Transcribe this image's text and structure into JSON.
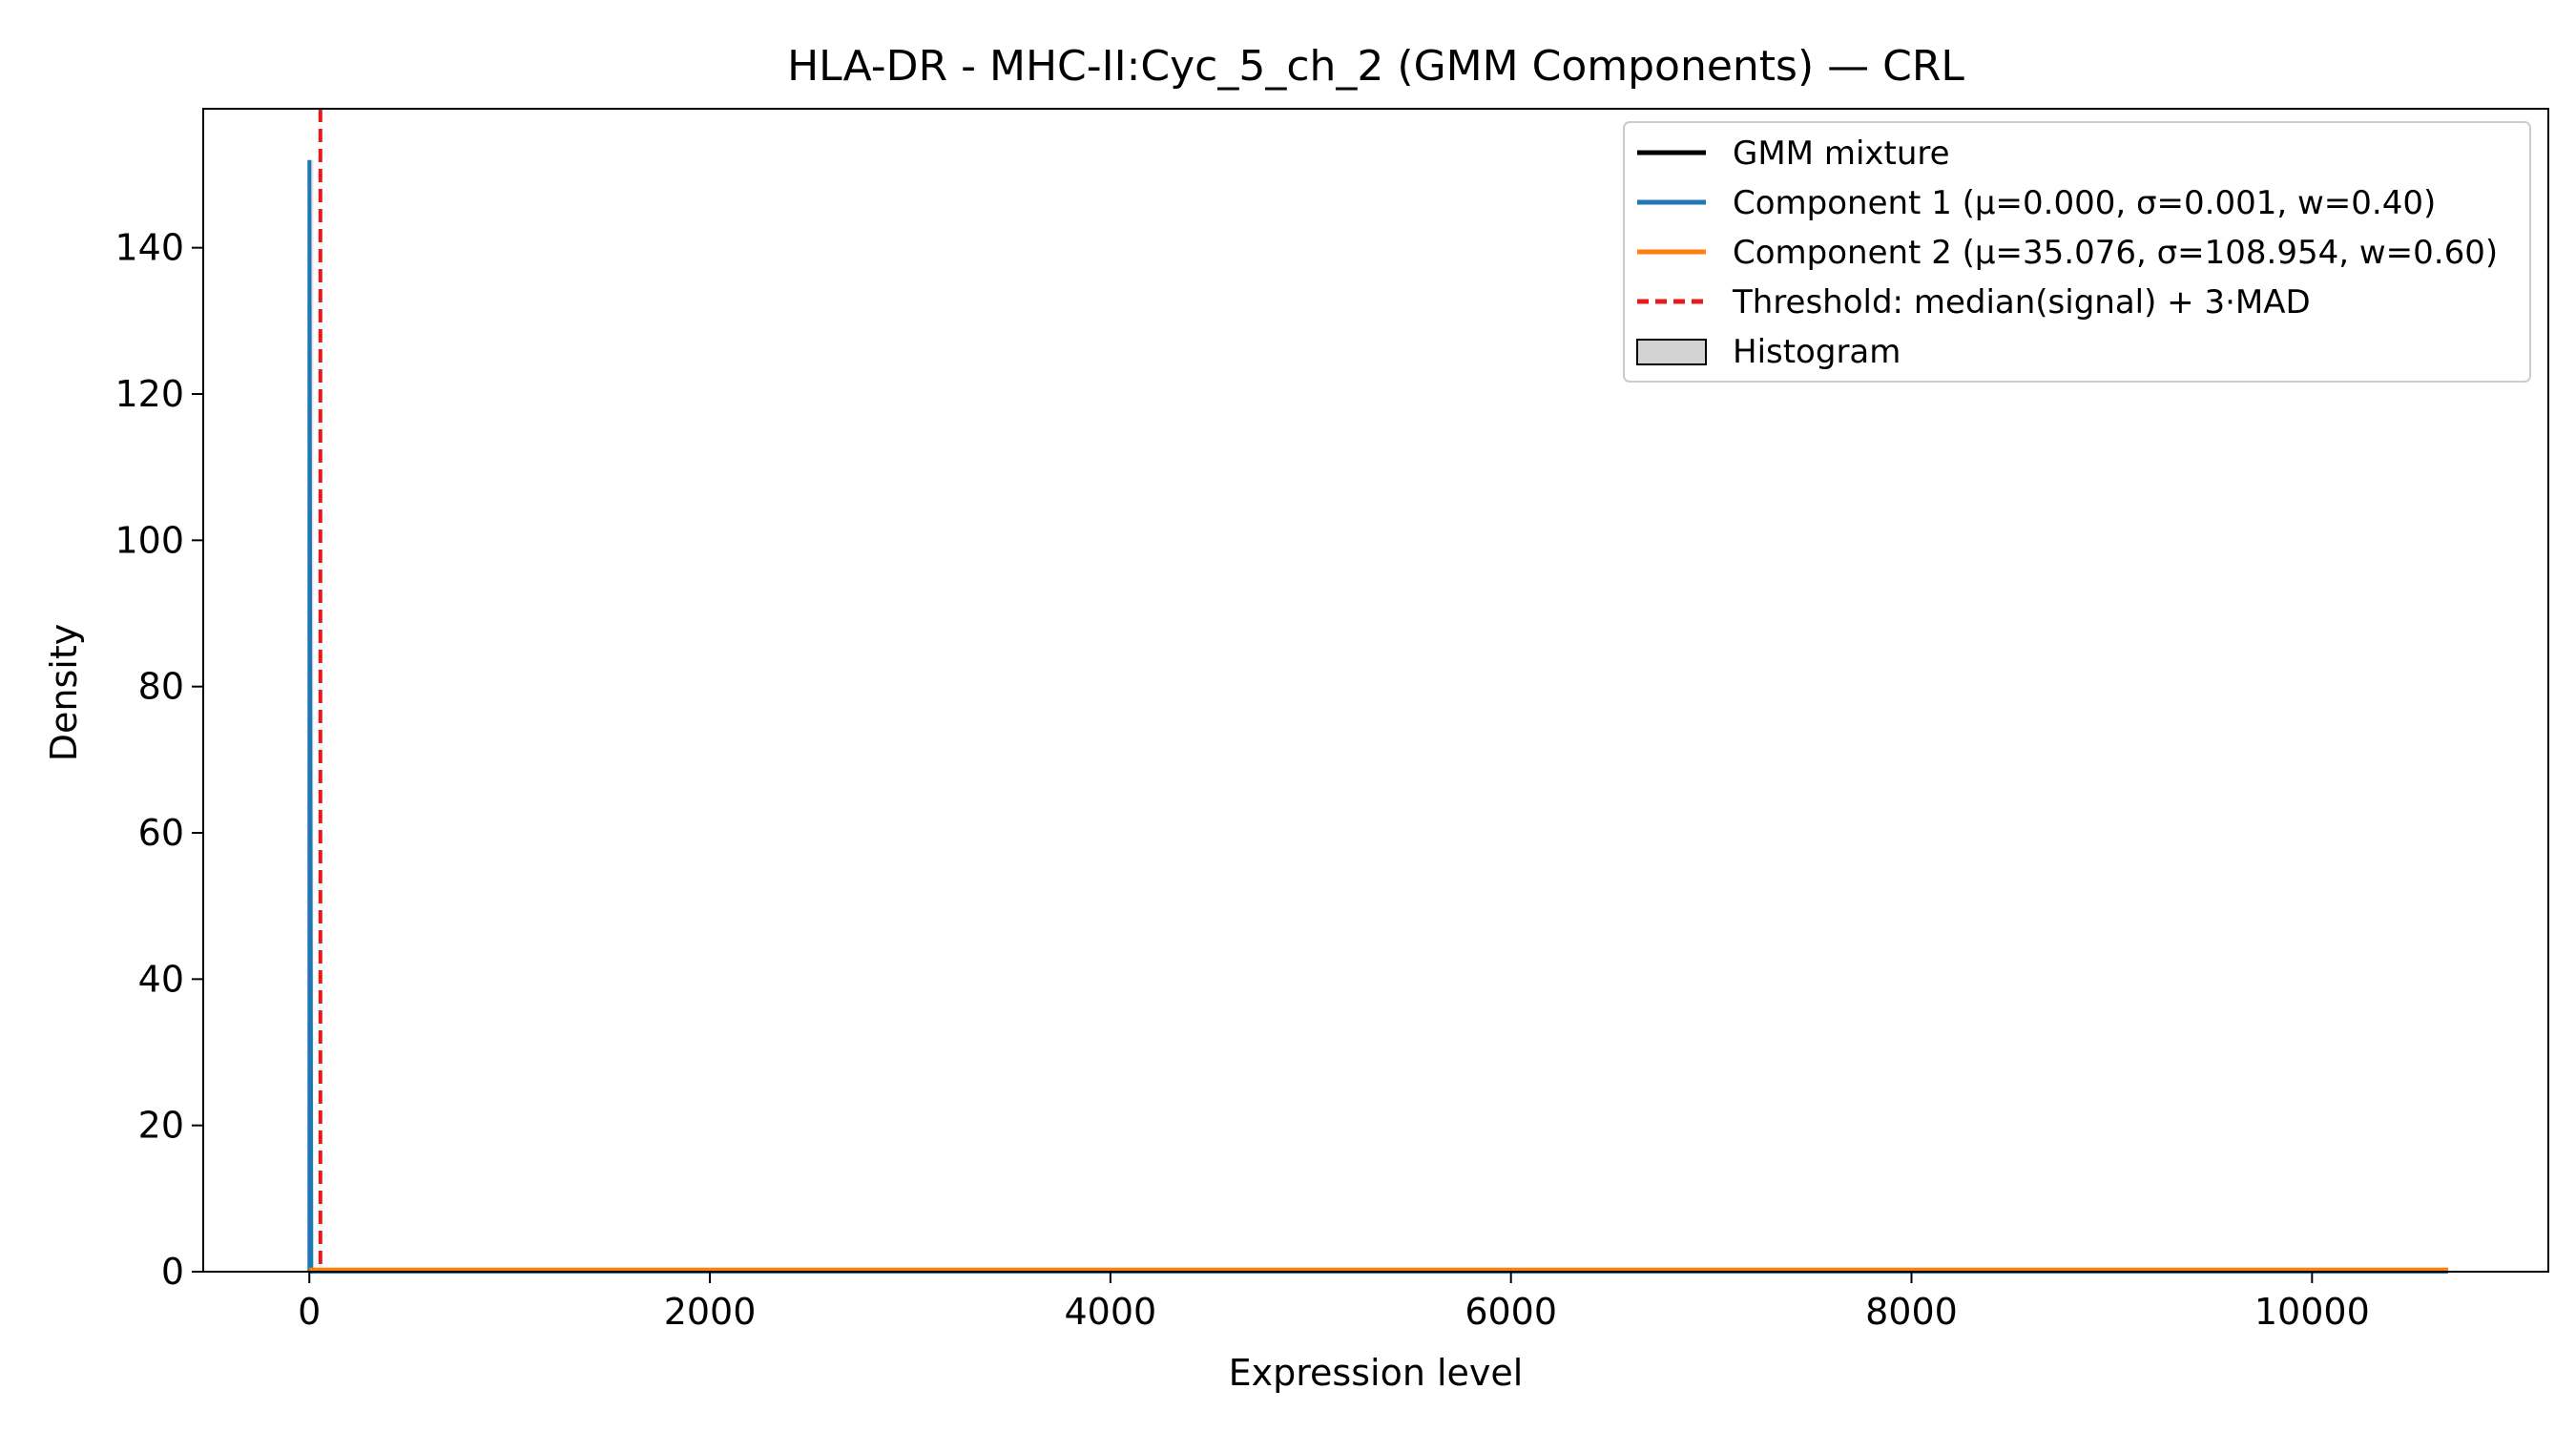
{
  "chart_data": {
    "type": "line",
    "title": "HLA-DR - MHC-II:Cyc_5_ch_2 (GMM Components) — CRL",
    "xlabel": "Expression level",
    "ylabel": "Density",
    "xlim": [
      -530,
      11180
    ],
    "ylim": [
      0,
      159
    ],
    "xticks": [
      0,
      2000,
      4000,
      6000,
      8000,
      10000
    ],
    "xtick_labels": [
      "0",
      "2000",
      "4000",
      "6000",
      "8000",
      "10000"
    ],
    "yticks": [
      0,
      20,
      40,
      60,
      80,
      100,
      120,
      140
    ],
    "ytick_labels": [
      "0",
      "20",
      "40",
      "60",
      "80",
      "100",
      "120",
      "140"
    ],
    "grid": false,
    "legend_position": "top-right",
    "legend": [
      {
        "label": "GMM mixture",
        "color": "#000000",
        "style": "solid"
      },
      {
        "label": "Component 1 (μ=0.000, σ=0.001, w=0.40)",
        "color": "#1f77b4",
        "style": "solid"
      },
      {
        "label": "Component 2 (μ=35.076, σ=108.954, w=0.60)",
        "color": "#ff7f0e",
        "style": "solid"
      },
      {
        "label": "Threshold: median(signal) + 3·MAD",
        "color": "#e41a1c",
        "style": "dashed"
      },
      {
        "label": "Histogram",
        "color": "#d3d3d3",
        "style": "patch"
      }
    ],
    "series": [
      {
        "name": "GMM mixture",
        "x": [
          0,
          10680
        ],
        "y": [
          0,
          0
        ],
        "color": "#000000"
      },
      {
        "name": "Component 1 (μ=0.000, σ=0.001, w=0.40)",
        "x": [
          0,
          0,
          10,
          10680
        ],
        "y": [
          0,
          152,
          0,
          0
        ],
        "color": "#1f77b4"
      },
      {
        "name": "Component 2 (μ=35.076, σ=108.954, w=0.60)",
        "x": [
          0,
          10680
        ],
        "y": [
          0.3,
          0.3
        ],
        "color": "#ff7f0e"
      }
    ],
    "histogram": {
      "name": "Histogram",
      "bins": [
        [
          0,
          20,
          152
        ]
      ],
      "color": "#d3d3d3"
    },
    "threshold": {
      "name": "Threshold: median(signal) + 3·MAD",
      "x": 55,
      "color": "#e41a1c"
    }
  }
}
